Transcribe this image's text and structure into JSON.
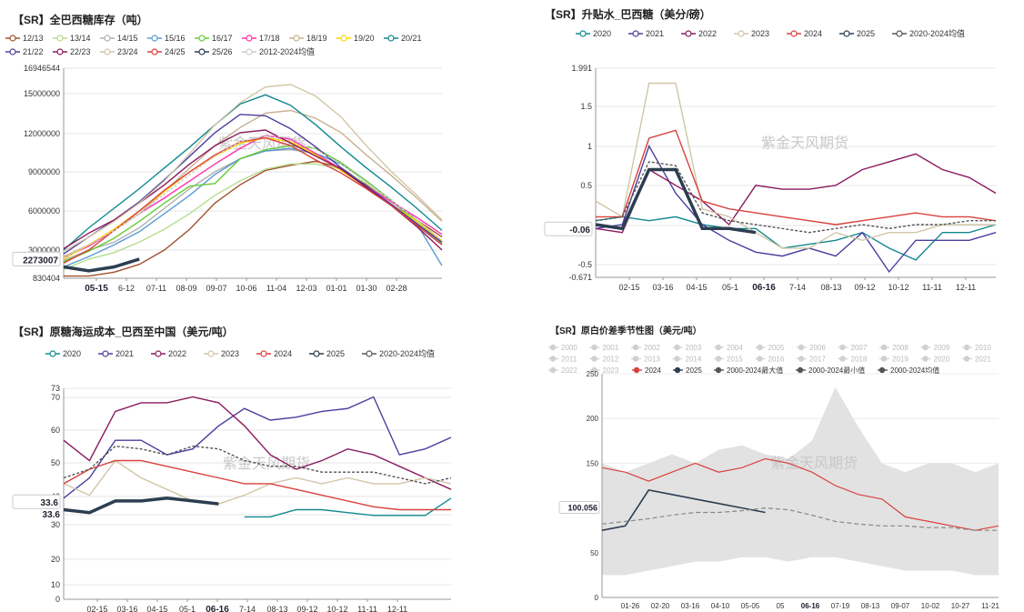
{
  "watermark": "紫金天风期货",
  "chart_data": [
    {
      "type": "line",
      "title": "【SR】全巴西糖库存（吨）",
      "y_ticks": [
        "16946544",
        "15000000",
        "12000000",
        "9000000",
        "6000000",
        "3000000",
        "830404"
      ],
      "x_ticks": [
        "05-15",
        "6-12",
        "07-11",
        "08-09",
        "09-07",
        "10-06",
        "11-04",
        "12-03",
        "01-01",
        "01-30",
        "02-28"
      ],
      "current_label": "2273007",
      "ylim": [
        830404,
        16946544
      ],
      "series": [
        {
          "name": "12/13",
          "color": "#a0522d",
          "values": [
            1.0,
            1.0,
            1.3,
            1.9,
            3.0,
            4.6,
            6.6,
            8.0,
            9.1,
            9.5,
            9.8,
            9.3,
            8.0,
            6.8,
            5.3,
            4.0
          ]
        },
        {
          "name": "13/14",
          "color": "#b5dd8e",
          "values": [
            1.5,
            2.3,
            2.8,
            3.6,
            4.6,
            5.8,
            7.2,
            8.3,
            9.2,
            9.6,
            9.6,
            9.2,
            8.1,
            6.7,
            5.3,
            3.7
          ]
        },
        {
          "name": "14/15",
          "color": "#b0b0b0",
          "values": [
            2.2,
            3.0,
            3.6,
            4.7,
            6.2,
            7.7,
            9.0,
            10.0,
            10.6,
            10.7,
            10.4,
            9.6,
            8.3,
            6.8,
            5.1,
            3.4
          ]
        },
        {
          "name": "15/16",
          "color": "#5b9bd5",
          "values": [
            1.7,
            2.5,
            3.4,
            4.4,
            5.8,
            7.2,
            8.8,
            10.0,
            10.6,
            10.8,
            10.4,
            9.6,
            8.3,
            6.8,
            5.0,
            1.8
          ]
        },
        {
          "name": "16/17",
          "color": "#66cc33",
          "values": [
            2.1,
            2.9,
            3.9,
            5.2,
            6.6,
            7.9,
            8.1,
            10.0,
            10.7,
            11.0,
            10.8,
            9.7,
            8.3,
            6.8,
            5.2,
            3.5
          ]
        },
        {
          "name": "17/18",
          "color": "#ff33aa",
          "values": [
            2.4,
            3.3,
            4.5,
            5.8,
            7.0,
            8.3,
            9.6,
            10.8,
            11.8,
            11.5,
            10.4,
            9.2,
            7.9,
            6.7,
            5.5,
            4.2
          ]
        },
        {
          "name": "18/19",
          "color": "#c8b090",
          "values": [
            2.5,
            3.4,
            4.5,
            5.8,
            7.5,
            9.3,
            11.0,
            12.4,
            13.5,
            13.7,
            13.1,
            12.0,
            10.3,
            8.7,
            7.0,
            5.2
          ]
        },
        {
          "name": "19/20",
          "color": "#ffd400",
          "values": [
            2.3,
            3.4,
            4.6,
            6.0,
            7.5,
            9.0,
            10.2,
            11.2,
            11.6,
            11.3,
            10.3,
            9.1,
            7.8,
            6.5,
            5.2,
            3.7
          ]
        },
        {
          "name": "20/21",
          "color": "#11898f",
          "values": [
            3.0,
            4.7,
            6.2,
            7.7,
            9.3,
            10.9,
            12.6,
            14.2,
            14.9,
            14.1,
            12.6,
            10.9,
            9.3,
            7.8,
            6.2,
            4.5
          ]
        },
        {
          "name": "21/22",
          "color": "#4b3f9e",
          "values": [
            2.7,
            4.0,
            5.3,
            6.7,
            8.4,
            10.2,
            12.0,
            13.4,
            13.3,
            12.3,
            10.9,
            9.3,
            7.9,
            6.5,
            5.0,
            3.6
          ]
        },
        {
          "name": "22/23",
          "color": "#8b1a5e",
          "values": [
            3.1,
            4.3,
            5.3,
            6.6,
            8.0,
            9.6,
            11.0,
            12.0,
            12.2,
            11.2,
            10.2,
            9.2,
            7.8,
            6.4,
            4.8,
            3.0
          ]
        },
        {
          "name": "23/24",
          "color": "#d2c6a8",
          "values": [
            2.9,
            4.0,
            5.2,
            6.6,
            8.3,
            10.4,
            12.6,
            14.3,
            15.5,
            15.7,
            14.8,
            13.2,
            11.0,
            9.0,
            7.2,
            5.3
          ]
        },
        {
          "name": "24/25",
          "color": "#d9413c",
          "values": [
            2.0,
            3.0,
            4.5,
            6.0,
            7.6,
            9.0,
            10.3,
            11.3,
            11.6,
            11.0,
            9.9,
            8.9,
            7.7,
            6.4,
            4.9,
            3.4
          ]
        },
        {
          "name": "25/26",
          "color": "#2c3e50",
          "values": [
            1.7,
            1.4,
            1.7,
            2.3
          ]
        },
        {
          "name": "2012-2024均值",
          "color": "#cccccc",
          "values": [
            2.4,
            3.4,
            4.5,
            5.8,
            7.3,
            8.8,
            10.2,
            11.3,
            11.8,
            11.6,
            10.7,
            9.6,
            8.2,
            6.8,
            5.3,
            3.7
          ]
        }
      ]
    },
    {
      "type": "line",
      "title": "【SR】升贴水_巴西糖（美分/磅）",
      "y_ticks": [
        "1.991",
        "1.5",
        "1",
        "0.5",
        "-0.06",
        "-0.5",
        "-0.671"
      ],
      "x_ticks": [
        "02-15",
        "03-16",
        "04-15",
        "05-1",
        "06-16",
        "7-14",
        "08-13",
        "09-12",
        "10-12",
        "11-11",
        "12-11"
      ],
      "current_label": "-0.06",
      "ylim": [
        -0.671,
        1.991
      ],
      "series": [
        {
          "name": "2020",
          "color": "#11898f",
          "values": [
            0.05,
            0.1,
            0.05,
            0.1,
            0.0,
            -0.05,
            -0.05,
            -0.3,
            -0.25,
            -0.2,
            -0.1,
            -0.3,
            -0.45,
            -0.1,
            -0.1,
            0.0
          ]
        },
        {
          "name": "2021",
          "color": "#4b3f9e",
          "values": [
            -0.05,
            0.0,
            1.0,
            0.4,
            0.0,
            -0.2,
            -0.35,
            -0.4,
            -0.3,
            -0.4,
            -0.1,
            -0.6,
            -0.2,
            -0.2,
            -0.2,
            -0.1
          ]
        },
        {
          "name": "2022",
          "color": "#8b1a5e",
          "values": [
            -0.05,
            -0.1,
            0.7,
            0.5,
            0.3,
            0.0,
            0.5,
            0.45,
            0.45,
            0.5,
            0.7,
            0.8,
            0.9,
            0.7,
            0.6,
            0.4
          ]
        },
        {
          "name": "2023",
          "color": "#d2c6a8",
          "values": [
            0.3,
            0.1,
            1.8,
            1.8,
            0.2,
            0.1,
            -0.1,
            -0.3,
            -0.3,
            -0.1,
            -0.2,
            -0.1,
            -0.1,
            0.0,
            0.0,
            0.0
          ]
        },
        {
          "name": "2024",
          "color": "#d9413c",
          "values": [
            0.1,
            0.1,
            1.1,
            1.2,
            0.3,
            0.2,
            0.15,
            0.1,
            0.05,
            0.0,
            0.05,
            0.1,
            0.15,
            0.1,
            0.1,
            0.05
          ]
        },
        {
          "name": "2025",
          "color": "#2c3e50",
          "values": [
            0.0,
            -0.05,
            0.7,
            0.7,
            -0.05,
            -0.05,
            -0.1
          ]
        },
        {
          "name": "2020-2024均值",
          "color": "#555555",
          "values": [
            0.05,
            0.1,
            0.8,
            0.75,
            0.15,
            0.05,
            0.0,
            -0.05,
            -0.1,
            -0.05,
            0.0,
            -0.05,
            0.0,
            0.0,
            0.05,
            0.05
          ]
        }
      ]
    },
    {
      "type": "line",
      "title": "【SR】原糖海运成本_巴西至中国（美元/吨）",
      "y_ticks": [
        "73",
        "70",
        "60",
        "50",
        "40",
        "33.6",
        "30",
        "20",
        "10",
        "0"
      ],
      "x_ticks": [
        "02-15",
        "03-16",
        "04-15",
        "05-1",
        "06-16",
        "7-14",
        "08-13",
        "09-12",
        "10-12",
        "11-11",
        "12-11"
      ],
      "current_label": "33.6",
      "ylim": [
        0,
        73
      ],
      "series": [
        {
          "name": "2020",
          "color": "#11898f",
          "values": [
            null,
            null,
            null,
            null,
            null,
            null,
            null,
            28.5,
            28.5,
            31,
            31,
            30,
            29,
            29,
            29,
            35
          ]
        },
        {
          "name": "2021",
          "color": "#4b3f9e",
          "values": [
            35,
            42,
            55,
            55,
            50,
            52,
            60,
            66,
            62,
            63,
            65,
            66,
            70,
            50,
            52,
            56
          ]
        },
        {
          "name": "2022",
          "color": "#8b1a5e",
          "values": [
            55,
            48,
            65,
            68,
            68,
            70,
            68,
            60,
            50,
            45,
            48,
            52,
            50,
            46,
            42,
            38
          ]
        },
        {
          "name": "2023",
          "color": "#d2c6a8",
          "values": [
            40,
            36,
            48,
            42,
            38,
            34,
            33,
            36,
            40,
            42,
            40,
            42,
            40,
            40,
            42,
            40
          ]
        },
        {
          "name": "2024",
          "color": "#d9413c",
          "values": [
            40,
            45,
            48,
            48,
            46,
            44,
            42,
            40,
            40,
            38,
            36,
            34,
            32,
            31,
            31,
            31
          ]
        },
        {
          "name": "2025",
          "color": "#2c3e50",
          "values": [
            31,
            30,
            34,
            34,
            35,
            34,
            33
          ]
        },
        {
          "name": "2020-2024均值",
          "color": "#555555",
          "values": [
            42,
            45,
            53,
            52,
            50,
            53,
            52,
            48,
            46,
            46,
            44,
            44,
            44,
            42,
            40,
            42
          ]
        }
      ]
    },
    {
      "type": "area",
      "title": "【SR】原白价差季节性图（美元/吨）",
      "y_ticks": [
        "250",
        "200",
        "150",
        "100.056",
        "50",
        "0"
      ],
      "x_ticks": [
        "01-26",
        "02-20",
        "03-16",
        "04-10",
        "05-05",
        "05",
        "06-16",
        "07-19",
        "08-13",
        "09-07",
        "10-02",
        "10-27",
        "11-21"
      ],
      "current_label": "100.056",
      "ylim": [
        0,
        250
      ],
      "legend_grey": [
        "2000",
        "2001",
        "2002",
        "2003",
        "2004",
        "2005",
        "2006",
        "2007",
        "2008",
        "2009",
        "2010",
        "2011",
        "2012",
        "2013",
        "2014",
        "2015",
        "2016",
        "2017",
        "2018",
        "2019",
        "2020",
        "2021",
        "2022",
        "2023"
      ],
      "legend_main": [
        {
          "name": "2024",
          "color": "#d9413c"
        },
        {
          "name": "2025",
          "color": "#2c3e50"
        },
        {
          "name": "2000-2024最大值",
          "color": "#555555"
        },
        {
          "name": "2000-2024最小值",
          "color": "#555555"
        },
        {
          "name": "2000-2024均值",
          "color": "#555555"
        }
      ],
      "band_max": [
        150,
        140,
        150,
        160,
        150,
        165,
        170,
        160,
        155,
        175,
        235,
        190,
        150,
        140,
        150,
        150,
        140,
        150
      ],
      "band_min": [
        25,
        25,
        30,
        35,
        40,
        40,
        45,
        45,
        40,
        45,
        45,
        40,
        35,
        30,
        30,
        30,
        25,
        25
      ],
      "series": [
        {
          "name": "2024",
          "color": "#d9413c",
          "values": [
            145,
            140,
            130,
            140,
            150,
            140,
            145,
            155,
            150,
            140,
            125,
            115,
            110,
            90,
            85,
            80,
            75,
            80
          ]
        },
        {
          "name": "2025",
          "color": "#2c3e50",
          "values": [
            75,
            80,
            120,
            115,
            110,
            105,
            100,
            95
          ]
        },
        {
          "name": "2000-2024均值",
          "color": "#888888",
          "values": [
            82,
            85,
            88,
            92,
            95,
            95,
            97,
            100,
            98,
            92,
            85,
            82,
            80,
            80,
            78,
            78,
            75,
            75
          ]
        }
      ]
    }
  ]
}
